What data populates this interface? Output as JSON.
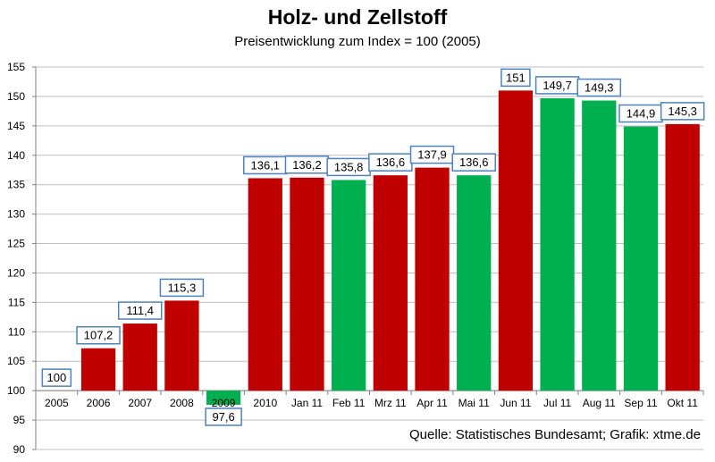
{
  "chart_data": {
    "type": "bar",
    "title": "Holz- und Zellstoff",
    "subtitle": "Preisentwicklung zum Index = 100 (2005)",
    "categories": [
      "2005",
      "2006",
      "2007",
      "2008",
      "2009",
      "2010",
      "Jan 11",
      "Feb 11",
      "Mrz 11",
      "Apr 11",
      "Mai 11",
      "Jun 11",
      "Jul 11",
      "Aug 11",
      "Sep 11",
      "Okt 11"
    ],
    "values": [
      100,
      107.2,
      111.4,
      115.3,
      97.6,
      136.1,
      136.2,
      135.8,
      136.6,
      137.9,
      136.6,
      151,
      149.7,
      149.3,
      144.9,
      145.3
    ],
    "data_labels": [
      "100",
      "107,2",
      "111,4",
      "115,3",
      "97,6",
      "136,1",
      "136,2",
      "135,8",
      "136,6",
      "137,9",
      "136,6",
      "151",
      "149,7",
      "149,3",
      "144,9",
      "145,3"
    ],
    "ylim": [
      90,
      155
    ],
    "yticks": [
      90,
      95,
      100,
      105,
      110,
      115,
      120,
      125,
      130,
      135,
      140,
      145,
      150,
      155
    ],
    "baseline": 100,
    "grid": true,
    "legend": "none",
    "colors": {
      "rise": "#c00000",
      "fall": "#00b050",
      "grid": "#bfbfbf",
      "label_border": "#4f81bd"
    },
    "source": "Quelle: Statistisches Bundesamt; Grafik: xtme.de"
  }
}
